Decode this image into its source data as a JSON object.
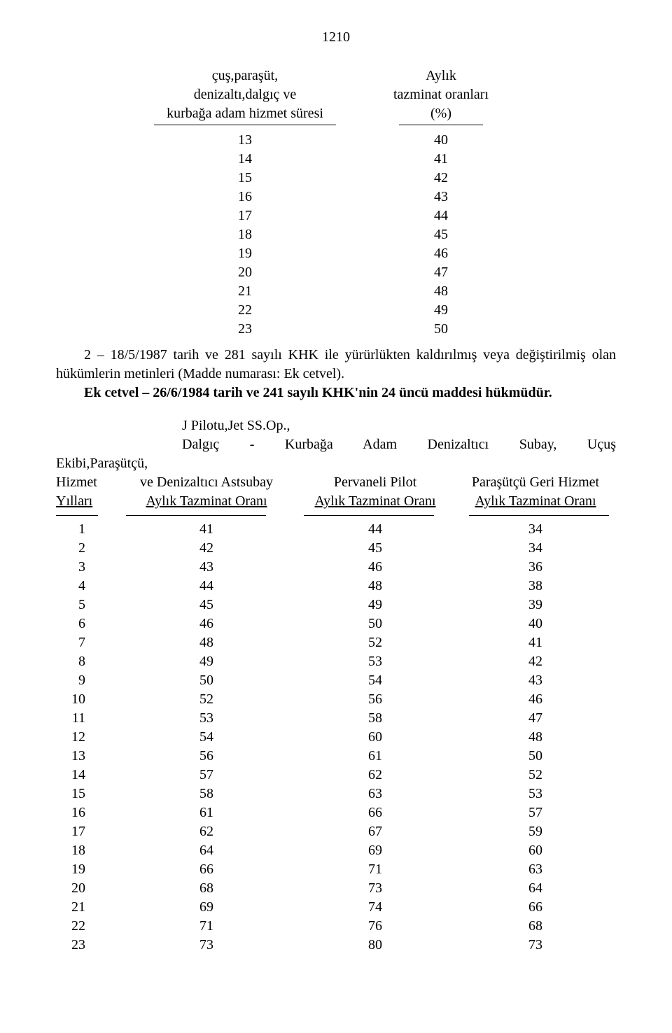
{
  "page_number": "1210",
  "table1": {
    "left_header_lines": [
      "çuş,paraşüt,",
      "denizaltı,dalgıç ve",
      "kurbağa adam hizmet süresi"
    ],
    "right_header_lines": [
      "Aylık",
      "tazminat oranları",
      "(%)"
    ],
    "rows": [
      [
        "13",
        "40"
      ],
      [
        "14",
        "41"
      ],
      [
        "15",
        "42"
      ],
      [
        "16",
        "43"
      ],
      [
        "17",
        "44"
      ],
      [
        "18",
        "45"
      ],
      [
        "19",
        "46"
      ],
      [
        "20",
        "47"
      ],
      [
        "21",
        "48"
      ],
      [
        "22",
        "49"
      ],
      [
        "23",
        "50"
      ]
    ]
  },
  "paragraph1": "2 – 18/5/1987 tarih ve 281 sayılı KHK ile yürürlükten kaldırılmış veya değiştirilmiş olan hükümlerin metinleri (Madde numarası: Ek cetvel).",
  "paragraph2": "Ek cetvel – 26/6/1984 tarih ve 241 sayılı KHK'nin 24 üncü maddesi hükmüdür.",
  "table2": {
    "spread_line1": "J Pilotu,Jet SS.Op.,",
    "spread_line2": "Dalgıç - Kurbağa Adam Denizaltıcı Subay, Uçuş",
    "spread_line3_prefix": "Ekibi,Paraşütçü,",
    "header_rows": {
      "col0": [
        "Hizmet",
        "Yılları"
      ],
      "col1": [
        "ve Denizaltıcı Astsubay",
        "Aylık Tazminat Oranı"
      ],
      "col2": [
        "Pervaneli Pilot",
        "Aylık Tazminat Oranı"
      ],
      "col3": [
        "Paraşütçü Geri Hizmet",
        "Aylık Tazminat Oranı"
      ]
    },
    "rows": [
      [
        "1",
        "41",
        "44",
        "34"
      ],
      [
        "2",
        "42",
        "45",
        "34"
      ],
      [
        "3",
        "43",
        "46",
        "36"
      ],
      [
        "4",
        "44",
        "48",
        "38"
      ],
      [
        "5",
        "45",
        "49",
        "39"
      ],
      [
        "6",
        "46",
        "50",
        "40"
      ],
      [
        "7",
        "48",
        "52",
        "41"
      ],
      [
        "8",
        "49",
        "53",
        "42"
      ],
      [
        "9",
        "50",
        "54",
        "43"
      ],
      [
        "10",
        "52",
        "56",
        "46"
      ],
      [
        "11",
        "53",
        "58",
        "47"
      ],
      [
        "12",
        "54",
        "60",
        "48"
      ],
      [
        "13",
        "56",
        "61",
        "50"
      ],
      [
        "14",
        "57",
        "62",
        "52"
      ],
      [
        "15",
        "58",
        "63",
        "53"
      ],
      [
        "16",
        "61",
        "66",
        "57"
      ],
      [
        "17",
        "62",
        "67",
        "59"
      ],
      [
        "18",
        "64",
        "69",
        "60"
      ],
      [
        "19",
        "66",
        "71",
        "63"
      ],
      [
        "20",
        "68",
        "73",
        "64"
      ],
      [
        "21",
        "69",
        "74",
        "66"
      ],
      [
        "22",
        "71",
        "76",
        "68"
      ],
      [
        "23",
        "73",
        "80",
        "73"
      ]
    ]
  }
}
